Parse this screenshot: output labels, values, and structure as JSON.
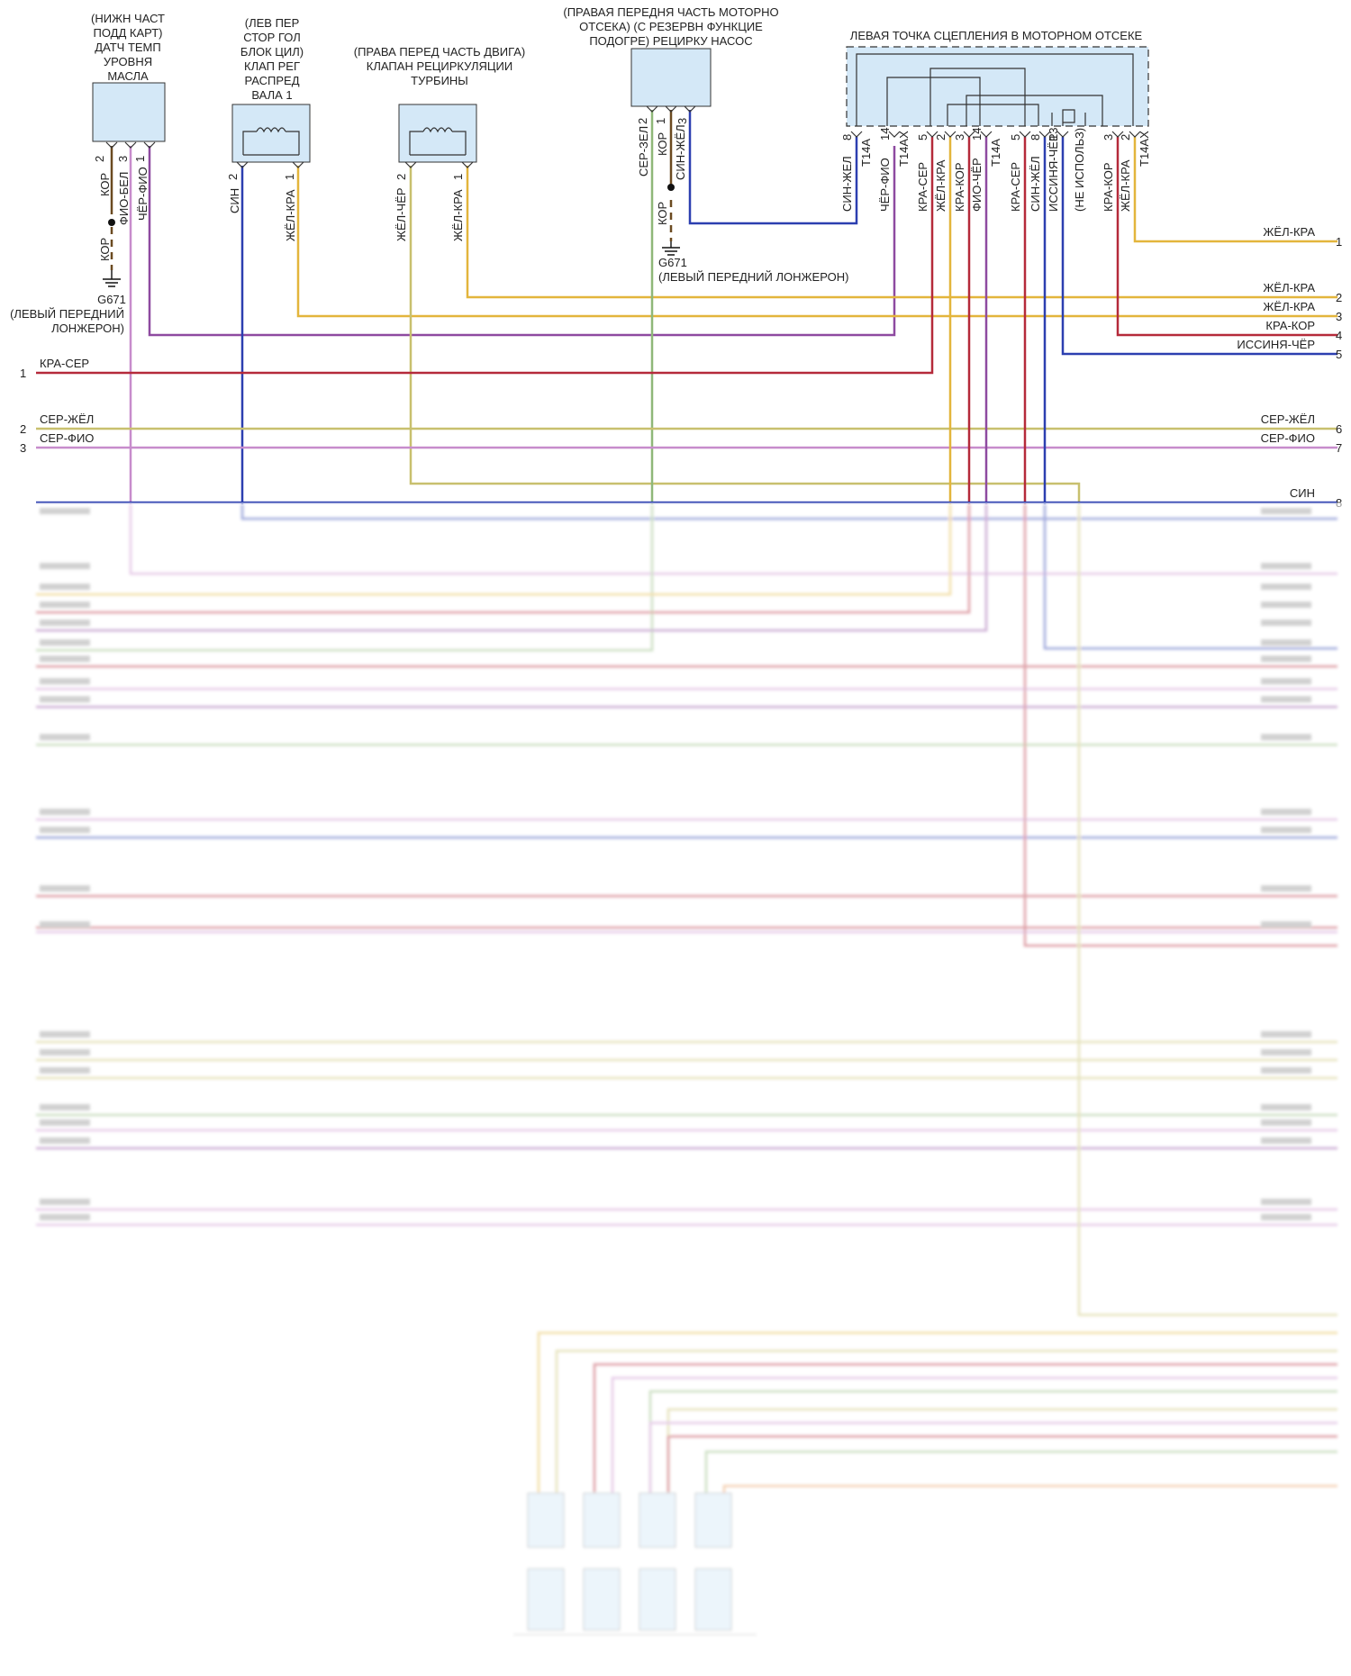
{
  "components": {
    "oil_sensor": {
      "lines": [
        "(НИЖН ЧАСТ",
        "ПОДД КАРТ)",
        "ДАТЧ ТЕМП",
        "УРОВНЯ",
        "МАСЛА"
      ],
      "pins": [
        "2",
        "3",
        "1"
      ]
    },
    "camshaft_valve": {
      "lines": [
        "(ЛЕВ ПЕР",
        "СТОР ГОЛ",
        "БЛОК ЦИЛ)",
        "КЛАП РЕГ",
        "РАСПРЕД",
        "ВАЛА 1"
      ],
      "pins": [
        "2",
        "1"
      ]
    },
    "turbo_valve": {
      "lines": [
        "(ПРАВА ПЕРЕД ЧАСТЬ ДВИГА)",
        "КЛАПАН РЕЦИРКУЛЯЦИИ",
        "ТУРБИНЫ"
      ],
      "pins": [
        "2",
        "1"
      ]
    },
    "pump": {
      "lines": [
        "(ПРАВАЯ ПЕРЕДНЯ ЧАСТЬ МОТОРНО",
        "ОТСЕКА) (С РЕЗЕРВН ФУНКЦИЕ",
        "ПОДОГРЕ) РЕЦИРКУ НАСОС"
      ],
      "pins": [
        "2",
        "1",
        "3"
      ]
    },
    "connector": {
      "title": "ЛЕВАЯ ТОЧКА СЦЕПЛЕНИЯ В МОТОРНОМ ОТСЕКЕ"
    }
  },
  "vertical_labels": {
    "oil": [
      "КОР",
      "ФИО-БЕЛ",
      "ЧЁР-ФИО"
    ],
    "oil_ground": "КОР",
    "cam": [
      "СИН",
      "ЖЁЛ-КРА"
    ],
    "turbo": [
      "ЖЁЛ-ЧЁР",
      "ЖЁЛ-КРА"
    ],
    "pump": [
      "СЕР-ЗЕЛ",
      "КОР",
      "СИН-ЖЁЛ"
    ],
    "pump_ground": "КОР",
    "connector_wires": [
      "СИН-ЖЕЛ",
      "ЧЁР-ФИО",
      "КРА-СЕР",
      "ЖЁЛ-КРА",
      "КРА-КОР",
      "ФИО-ЧЁР",
      "КРА-СЕР",
      "СИН-ЖЁЛ",
      "ИССИНЯ-ЧЁР",
      "(НЕ ИСПОЛЬЗ)",
      "КРА-КОР",
      "ЖЁЛ-КРА"
    ],
    "connector_codes": [
      "T14A",
      "T14AX",
      "T14A",
      "T14AX"
    ]
  },
  "connector_pins": [
    "8",
    "14",
    "5",
    "2",
    "3",
    "14",
    "5",
    "8",
    "13",
    "3",
    "2"
  ],
  "grounds": {
    "g1": {
      "id": "G671",
      "lines": [
        "(ЛЕВЫЙ ПЕРЕДНИЙ",
        "ЛОНЖЕРОН)"
      ]
    },
    "g2": {
      "id": "G671",
      "label": "(ЛЕВЫЙ ПЕРЕДНИЙ ЛОНЖЕРОН)"
    }
  },
  "right_lines": [
    {
      "n": "1",
      "label": "ЖЁЛ-КРА"
    },
    {
      "n": "2",
      "label": "ЖЁЛ-КРА"
    },
    {
      "n": "3",
      "label": "ЖЁЛ-КРА"
    },
    {
      "n": "4",
      "label": "КРА-КОР"
    },
    {
      "n": "5",
      "label": "ИССИНЯ-ЧЁР"
    },
    {
      "n": "6",
      "label": "СЕР-ЖЁЛ"
    },
    {
      "n": "7",
      "label": "СЕР-ФИО"
    },
    {
      "n": "8",
      "label": "СИН"
    }
  ],
  "left_lines": [
    {
      "n": "1",
      "label": "КРА-СЕР"
    },
    {
      "n": "2",
      "label": "СЕР-ЖЁЛ"
    },
    {
      "n": "3",
      "label": "СЕР-ФИО"
    }
  ],
  "colors": {
    "yellow": "#e3b53c",
    "red": "#b52a3a",
    "violet": "#8e4aa0",
    "blue": "#2c3fb0",
    "green": "#8fb879",
    "olive": "#c8c06e",
    "lilac": "#c78ccc",
    "brown": "#6b4a20",
    "box_fill": "#d4e8f7"
  }
}
